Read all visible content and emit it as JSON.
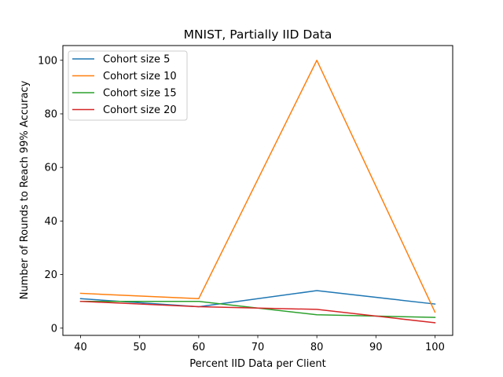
{
  "chart_data": {
    "type": "line",
    "title": "MNIST, Partially IID Data",
    "xlabel": "Percent IID Data per Client",
    "ylabel": "Number of Rounds to Reach 99% Accuracy",
    "x": [
      40,
      60,
      80,
      100
    ],
    "xlim": [
      37,
      103
    ],
    "ylim": [
      -2.7,
      105.5
    ],
    "xticks": [
      40,
      50,
      60,
      70,
      80,
      90,
      100
    ],
    "yticks": [
      0,
      20,
      40,
      60,
      80,
      100
    ],
    "grid": false,
    "legend_position": "top-left",
    "series": [
      {
        "name": "Cohort size 5",
        "color": "#1f77b4",
        "values": [
          11,
          8,
          14,
          9
        ]
      },
      {
        "name": "Cohort size 10",
        "color": "#ff7f0e",
        "values": [
          13,
          11,
          100,
          6
        ]
      },
      {
        "name": "Cohort size 15",
        "color": "#2ca02c",
        "values": [
          10,
          10,
          5,
          4
        ]
      },
      {
        "name": "Cohort size 20",
        "color": "#d62728",
        "values": [
          10,
          8,
          7,
          2
        ]
      }
    ]
  }
}
